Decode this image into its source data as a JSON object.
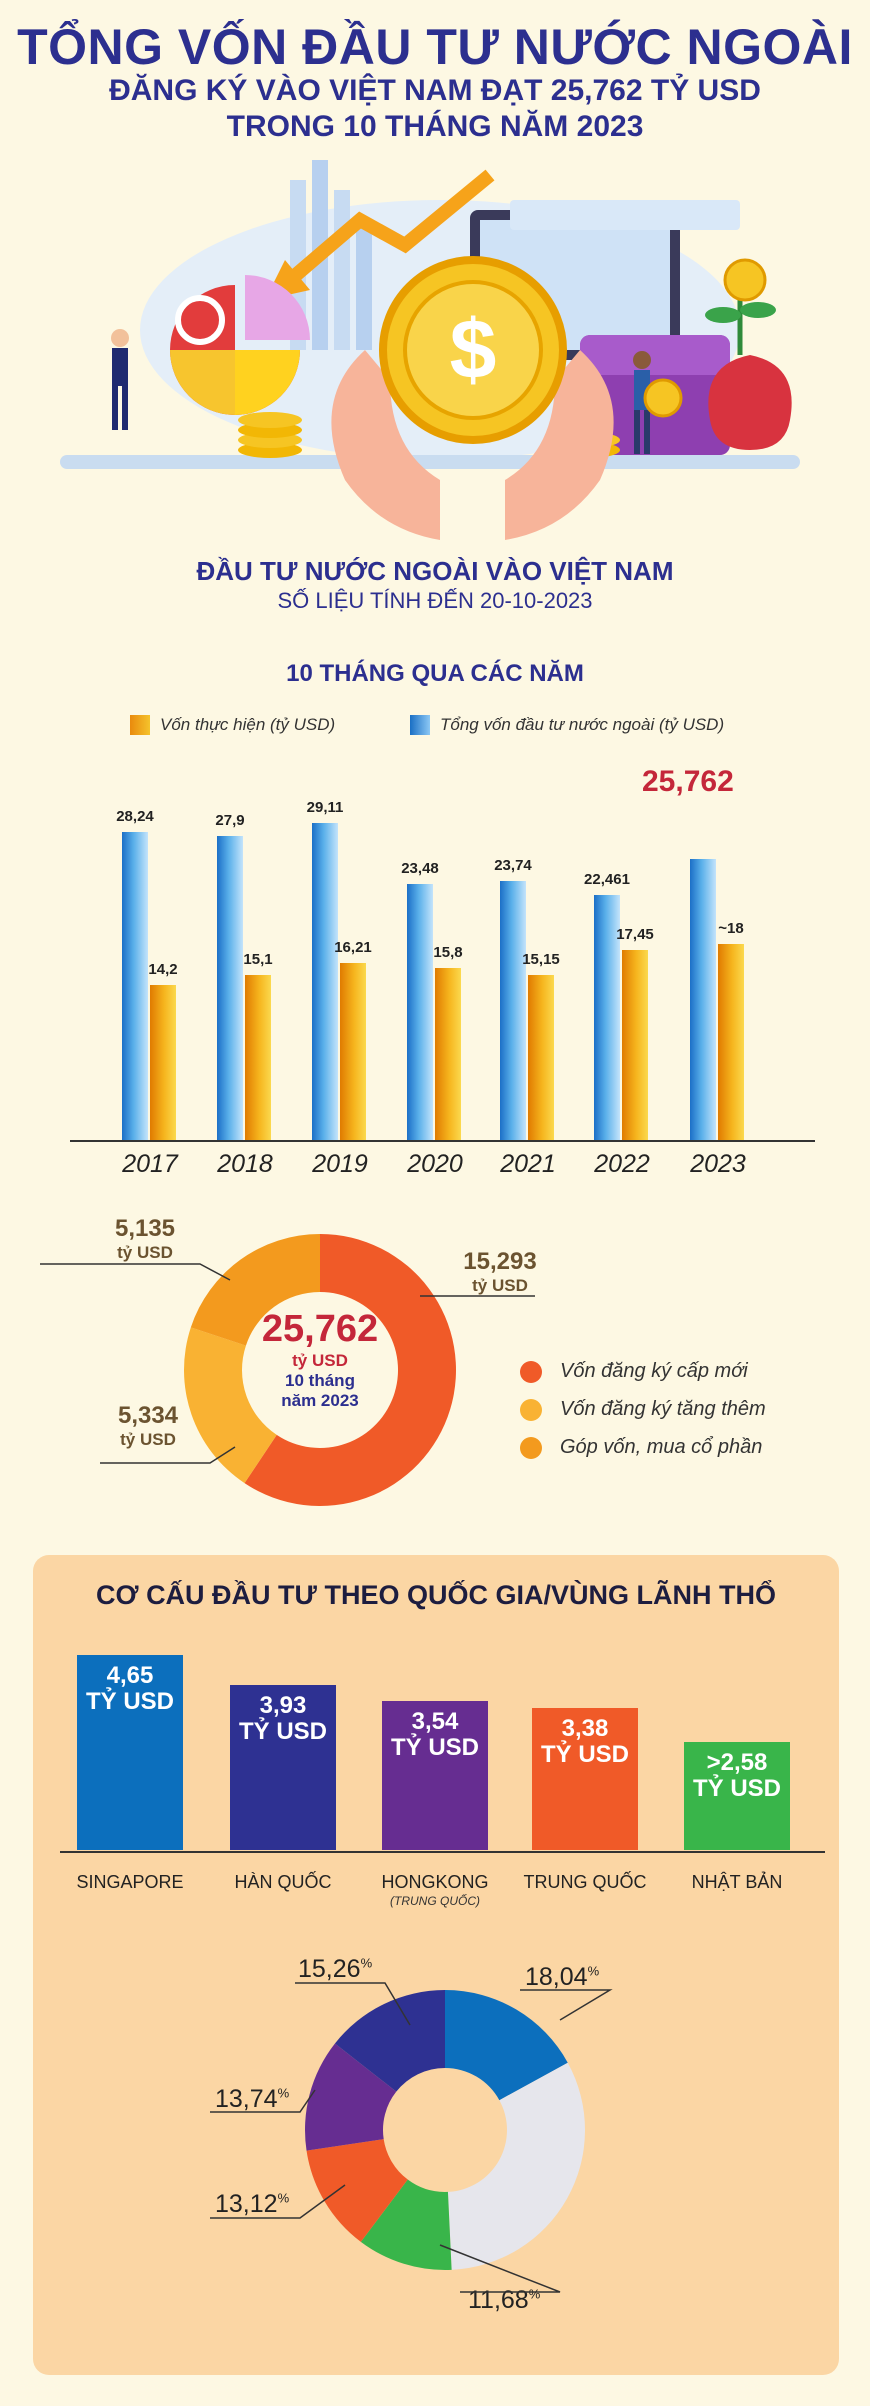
{
  "header": {
    "line1": "TỔNG VỐN ĐẦU TƯ NƯỚC NGOÀI",
    "line2": "ĐĂNG KÝ VÀO VIỆT NAM ĐẠT 25,762 TỶ USD",
    "line3": "TRONG 10 THÁNG NĂM 2023"
  },
  "section1": {
    "title": "ĐẦU TƯ NƯỚC NGOÀI VÀO VIỆT NAM",
    "subtitle": "SỐ LIỆU TÍNH ĐẾN 20-10-2023",
    "chart_title": "10 THÁNG QUA CÁC NĂM"
  },
  "colors": {
    "blue_bar": "#3a93dc",
    "orange_bar": "#f0a21b",
    "highlight": "#c4273a",
    "panel_bg": "#fbd6a4"
  },
  "chart_data": [
    {
      "type": "bar",
      "title": "10 THÁNG QUA CÁC NĂM",
      "categories": [
        "2017",
        "2018",
        "2019",
        "2020",
        "2021",
        "2022",
        "2023"
      ],
      "series": [
        {
          "name": "Vốn thực hiện (tỷ USD)",
          "values": [
            14.2,
            15.1,
            16.21,
            15.8,
            15.15,
            17.45,
            18
          ],
          "labels": [
            "14,2",
            "15,1",
            "16,21",
            "15,8",
            "15,15",
            "17,45",
            "~18"
          ]
        },
        {
          "name": "Tổng vốn đầu tư nước ngoài (tỷ USD)",
          "values": [
            28.24,
            27.9,
            29.11,
            23.48,
            23.74,
            22.461,
            25.762
          ],
          "labels": [
            "28,24",
            "27,9",
            "29,11",
            "23,48",
            "23,74",
            "22,461",
            "25,762"
          ]
        }
      ],
      "ylim": [
        0,
        32
      ]
    },
    {
      "type": "pie",
      "center_value": "25,762",
      "center_unit": "tỷ USD",
      "center_line3": "10 tháng",
      "center_line4": "năm 2023",
      "slices": [
        {
          "name": "Vốn đăng ký cấp mới",
          "value": 15.293,
          "label": "15,293",
          "unit": "tỷ USD",
          "color": "#f05a28"
        },
        {
          "name": "Vốn đăng ký tăng thêm",
          "value": 5.334,
          "label": "5,334",
          "unit": "tỷ USD",
          "color": "#f9b233"
        },
        {
          "name": "Góp vốn, mua cổ phần",
          "value": 5.135,
          "label": "5,135",
          "unit": "tỷ USD",
          "color": "#f39a1e"
        }
      ]
    },
    {
      "type": "bar",
      "title": "CƠ CẤU ĐẦU TƯ THEO QUỐC GIA/VÙNG LÃNH THỔ",
      "categories": [
        "SINGAPORE",
        "HÀN QUỐC",
        "HONGKONG",
        "TRUNG QUỐC",
        "NHẬT BẢN"
      ],
      "category_notes": [
        "",
        "",
        "(TRUNG QUỐC)",
        "",
        ""
      ],
      "values": [
        4.65,
        3.93,
        3.54,
        3.38,
        2.58
      ],
      "labels": [
        "4,65",
        "3,93",
        "3,54",
        "3,38",
        ">2,58"
      ],
      "unit": "TỶ USD",
      "colors": [
        "#0c6fbd",
        "#2e3192",
        "#662d91",
        "#f05a28",
        "#39b54a"
      ]
    },
    {
      "type": "pie",
      "slices": [
        {
          "value": 18.04,
          "label": "18,04",
          "color": "#0c6fbd"
        },
        {
          "value": 34.16,
          "label": "",
          "color": "#e6e6ec"
        },
        {
          "value": 11.68,
          "label": "11,68",
          "color": "#39b54a"
        },
        {
          "value": 13.12,
          "label": "13,12",
          "color": "#f05a28"
        },
        {
          "value": 13.74,
          "label": "13,74",
          "color": "#662d91"
        },
        {
          "value": 15.26,
          "label": "15,26",
          "color": "#2e3192"
        }
      ],
      "unit_symbol": "%"
    }
  ]
}
